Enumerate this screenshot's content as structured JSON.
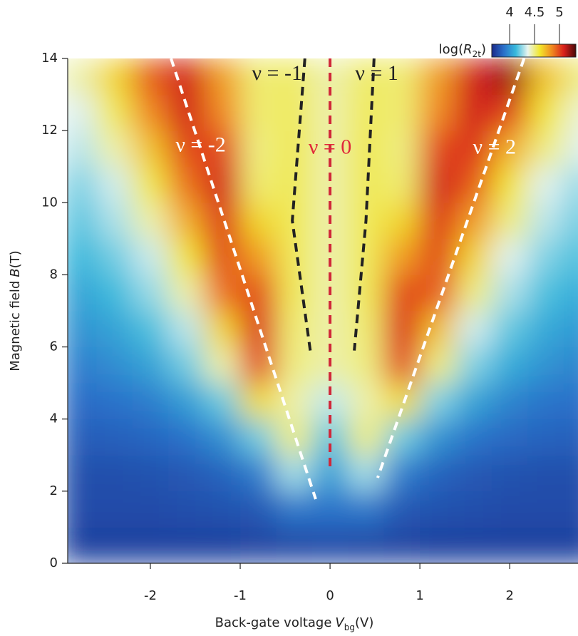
{
  "chart_data": {
    "type": "heatmap",
    "xlabel": {
      "text": "Back-gate voltage",
      "symbol": "V",
      "subscript": "bg",
      "unit": "(V)"
    },
    "ylabel": {
      "text": "Magnetic field",
      "symbol": "B",
      "unit": "(T)"
    },
    "xlim": [
      -2.92,
      2.76
    ],
    "ylim": [
      0,
      14
    ],
    "xticks": [
      -2,
      -1,
      0,
      1,
      2
    ],
    "yticks": [
      0,
      2,
      4,
      6,
      8,
      10,
      12,
      14
    ],
    "x": [
      -2.8,
      -2.4,
      -2.0,
      -1.6,
      -1.2,
      -0.8,
      -0.4,
      0,
      0.4,
      0.8,
      1.2,
      1.6,
      2.0,
      2.4,
      2.8
    ],
    "y": [
      0.5,
      1.5,
      2.5,
      3.5,
      4.5,
      5.5,
      6.5,
      7.5,
      8.5,
      9.5,
      10.5,
      11.5,
      12.5,
      13.5
    ],
    "z": [
      [
        3.72,
        3.72,
        3.72,
        3.72,
        3.72,
        3.73,
        3.74,
        3.75,
        3.74,
        3.73,
        3.72,
        3.72,
        3.72,
        3.72,
        3.72
      ],
      [
        3.76,
        3.76,
        3.76,
        3.77,
        3.78,
        3.8,
        3.91,
        3.89,
        3.91,
        3.8,
        3.78,
        3.77,
        3.76,
        3.76,
        3.76
      ],
      [
        3.77,
        3.77,
        3.78,
        3.8,
        3.84,
        3.93,
        4.27,
        4.03,
        4.27,
        3.93,
        3.84,
        3.8,
        3.78,
        3.77,
        3.77
      ],
      [
        3.82,
        3.83,
        3.85,
        3.89,
        3.99,
        4.2,
        4.5,
        4.17,
        4.5,
        4.2,
        4.0,
        3.9,
        3.86,
        3.84,
        3.83
      ],
      [
        3.87,
        3.89,
        3.93,
        4.03,
        4.19,
        4.63,
        4.45,
        4.31,
        4.45,
        4.63,
        4.22,
        4.05,
        3.95,
        3.9,
        3.88
      ],
      [
        3.93,
        3.98,
        4.05,
        4.2,
        4.45,
        5.0,
        4.5,
        4.45,
        4.5,
        5.0,
        4.5,
        4.22,
        4.08,
        4.0,
        3.95
      ],
      [
        4.0,
        4.05,
        4.15,
        4.3,
        4.65,
        5.08,
        4.52,
        4.45,
        4.52,
        5.08,
        4.7,
        4.33,
        4.18,
        4.07,
        4.02
      ],
      [
        4.05,
        4.13,
        4.25,
        4.45,
        4.9,
        5.0,
        4.55,
        4.45,
        4.55,
        5.0,
        4.95,
        4.5,
        4.28,
        4.15,
        4.08
      ],
      [
        4.12,
        4.2,
        4.32,
        4.6,
        5.0,
        4.8,
        4.55,
        4.45,
        4.55,
        4.8,
        5.0,
        4.65,
        4.35,
        4.22,
        4.15
      ],
      [
        4.17,
        4.28,
        4.45,
        4.75,
        5.05,
        4.65,
        4.55,
        4.45,
        4.55,
        4.65,
        5.05,
        4.8,
        4.5,
        4.3,
        4.2
      ],
      [
        4.22,
        4.33,
        4.57,
        4.9,
        5.1,
        4.52,
        4.55,
        4.45,
        4.55,
        4.52,
        5.1,
        4.95,
        4.6,
        4.35,
        4.25
      ],
      [
        4.3,
        4.45,
        4.7,
        5.0,
        5.0,
        4.5,
        4.55,
        4.45,
        4.55,
        4.5,
        5.0,
        5.05,
        4.75,
        4.5,
        4.35
      ],
      [
        4.35,
        4.55,
        4.85,
        5.1,
        4.85,
        4.52,
        4.54,
        4.45,
        4.54,
        4.52,
        4.85,
        5.1,
        5.0,
        4.6,
        4.4
      ],
      [
        4.45,
        4.65,
        4.95,
        5.1,
        4.8,
        4.52,
        4.53,
        4.45,
        4.53,
        4.52,
        4.8,
        5.1,
        5.2,
        4.7,
        4.5
      ]
    ],
    "colormap": [
      "#1a2a8a",
      "#2a6fc9",
      "#38b9dc",
      "#e9f5ef",
      "#f2e62c",
      "#f08a20",
      "#d9201c",
      "#4a0808"
    ],
    "colorbar": {
      "label": {
        "text": "log(",
        "symbol": "R",
        "subscript": "2t",
        "unit": ")"
      },
      "lim": [
        3.64,
        5.33
      ],
      "ticks": [
        4,
        4.5,
        5
      ]
    },
    "guides": [
      {
        "x": [
          -1.77,
          -0.16
        ],
        "y": [
          14,
          1.78
        ],
        "color": "#ffffff"
      },
      {
        "x": [
          -0.28,
          -0.42,
          -0.22
        ],
        "y": [
          14,
          9.5,
          5.9
        ],
        "color": "#222222"
      },
      {
        "x": [
          0,
          0
        ],
        "y": [
          14,
          2.57
        ],
        "color": "#d0283a"
      },
      {
        "x": [
          0.49,
          0.4,
          0.27
        ],
        "y": [
          14,
          9.5,
          5.9
        ],
        "color": "#222222"
      },
      {
        "x": [
          2.16,
          0.53
        ],
        "y": [
          14,
          2.37
        ],
        "color": "#ffffff"
      }
    ],
    "annotations": [
      {
        "text": "ν = -2",
        "x": -1.44,
        "y": 11.56,
        "color": "#ffffff"
      },
      {
        "text": "ν = -1",
        "x": -0.59,
        "y": 13.54,
        "color": "#222222"
      },
      {
        "text": "ν = 0",
        "x": 0,
        "y": 11.5,
        "color": "#e0283a"
      },
      {
        "text": "ν = 1",
        "x": 0.52,
        "y": 13.54,
        "color": "#222222"
      },
      {
        "text": "ν = 2",
        "x": 1.83,
        "y": 11.5,
        "color": "#ffffff"
      }
    ]
  }
}
